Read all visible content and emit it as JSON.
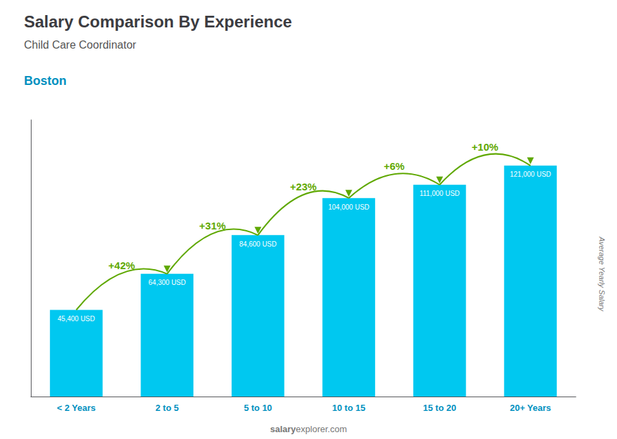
{
  "chart_data": {
    "type": "bar",
    "title": "Salary Comparison By Experience",
    "subtitle": "Child Care Coordinator",
    "ylabel": "Average Yearly Salary",
    "categories": [
      "< 2 Years",
      "2 to 5",
      "5 to 10",
      "10 to 15",
      "15 to 20",
      "20+ Years"
    ],
    "values": [
      45400,
      64300,
      84600,
      104000,
      111000,
      121000
    ],
    "value_labels": [
      "45,400 USD",
      "64,300 USD",
      "84,600 USD",
      "104,000 USD",
      "111,000 USD",
      "121,000 USD"
    ],
    "data_labels": true,
    "color": "#00c8f0",
    "ylim": [
      0,
      145000
    ],
    "grid": false,
    "tick_labels": "x",
    "annotations": [
      {
        "text": "Boston"
      },
      {
        "text": "salary"
      },
      {
        "text": "explorer.com"
      },
      {
        "text": "+42%",
        "category": "2 to 5"
      },
      {
        "text": "+31%",
        "category": "5 to 10"
      },
      {
        "text": "+23%",
        "category": "10 to 15"
      },
      {
        "text": "+6%",
        "category": "15 to 20"
      },
      {
        "text": "+10%",
        "category": "20+ Years"
      }
    ]
  }
}
